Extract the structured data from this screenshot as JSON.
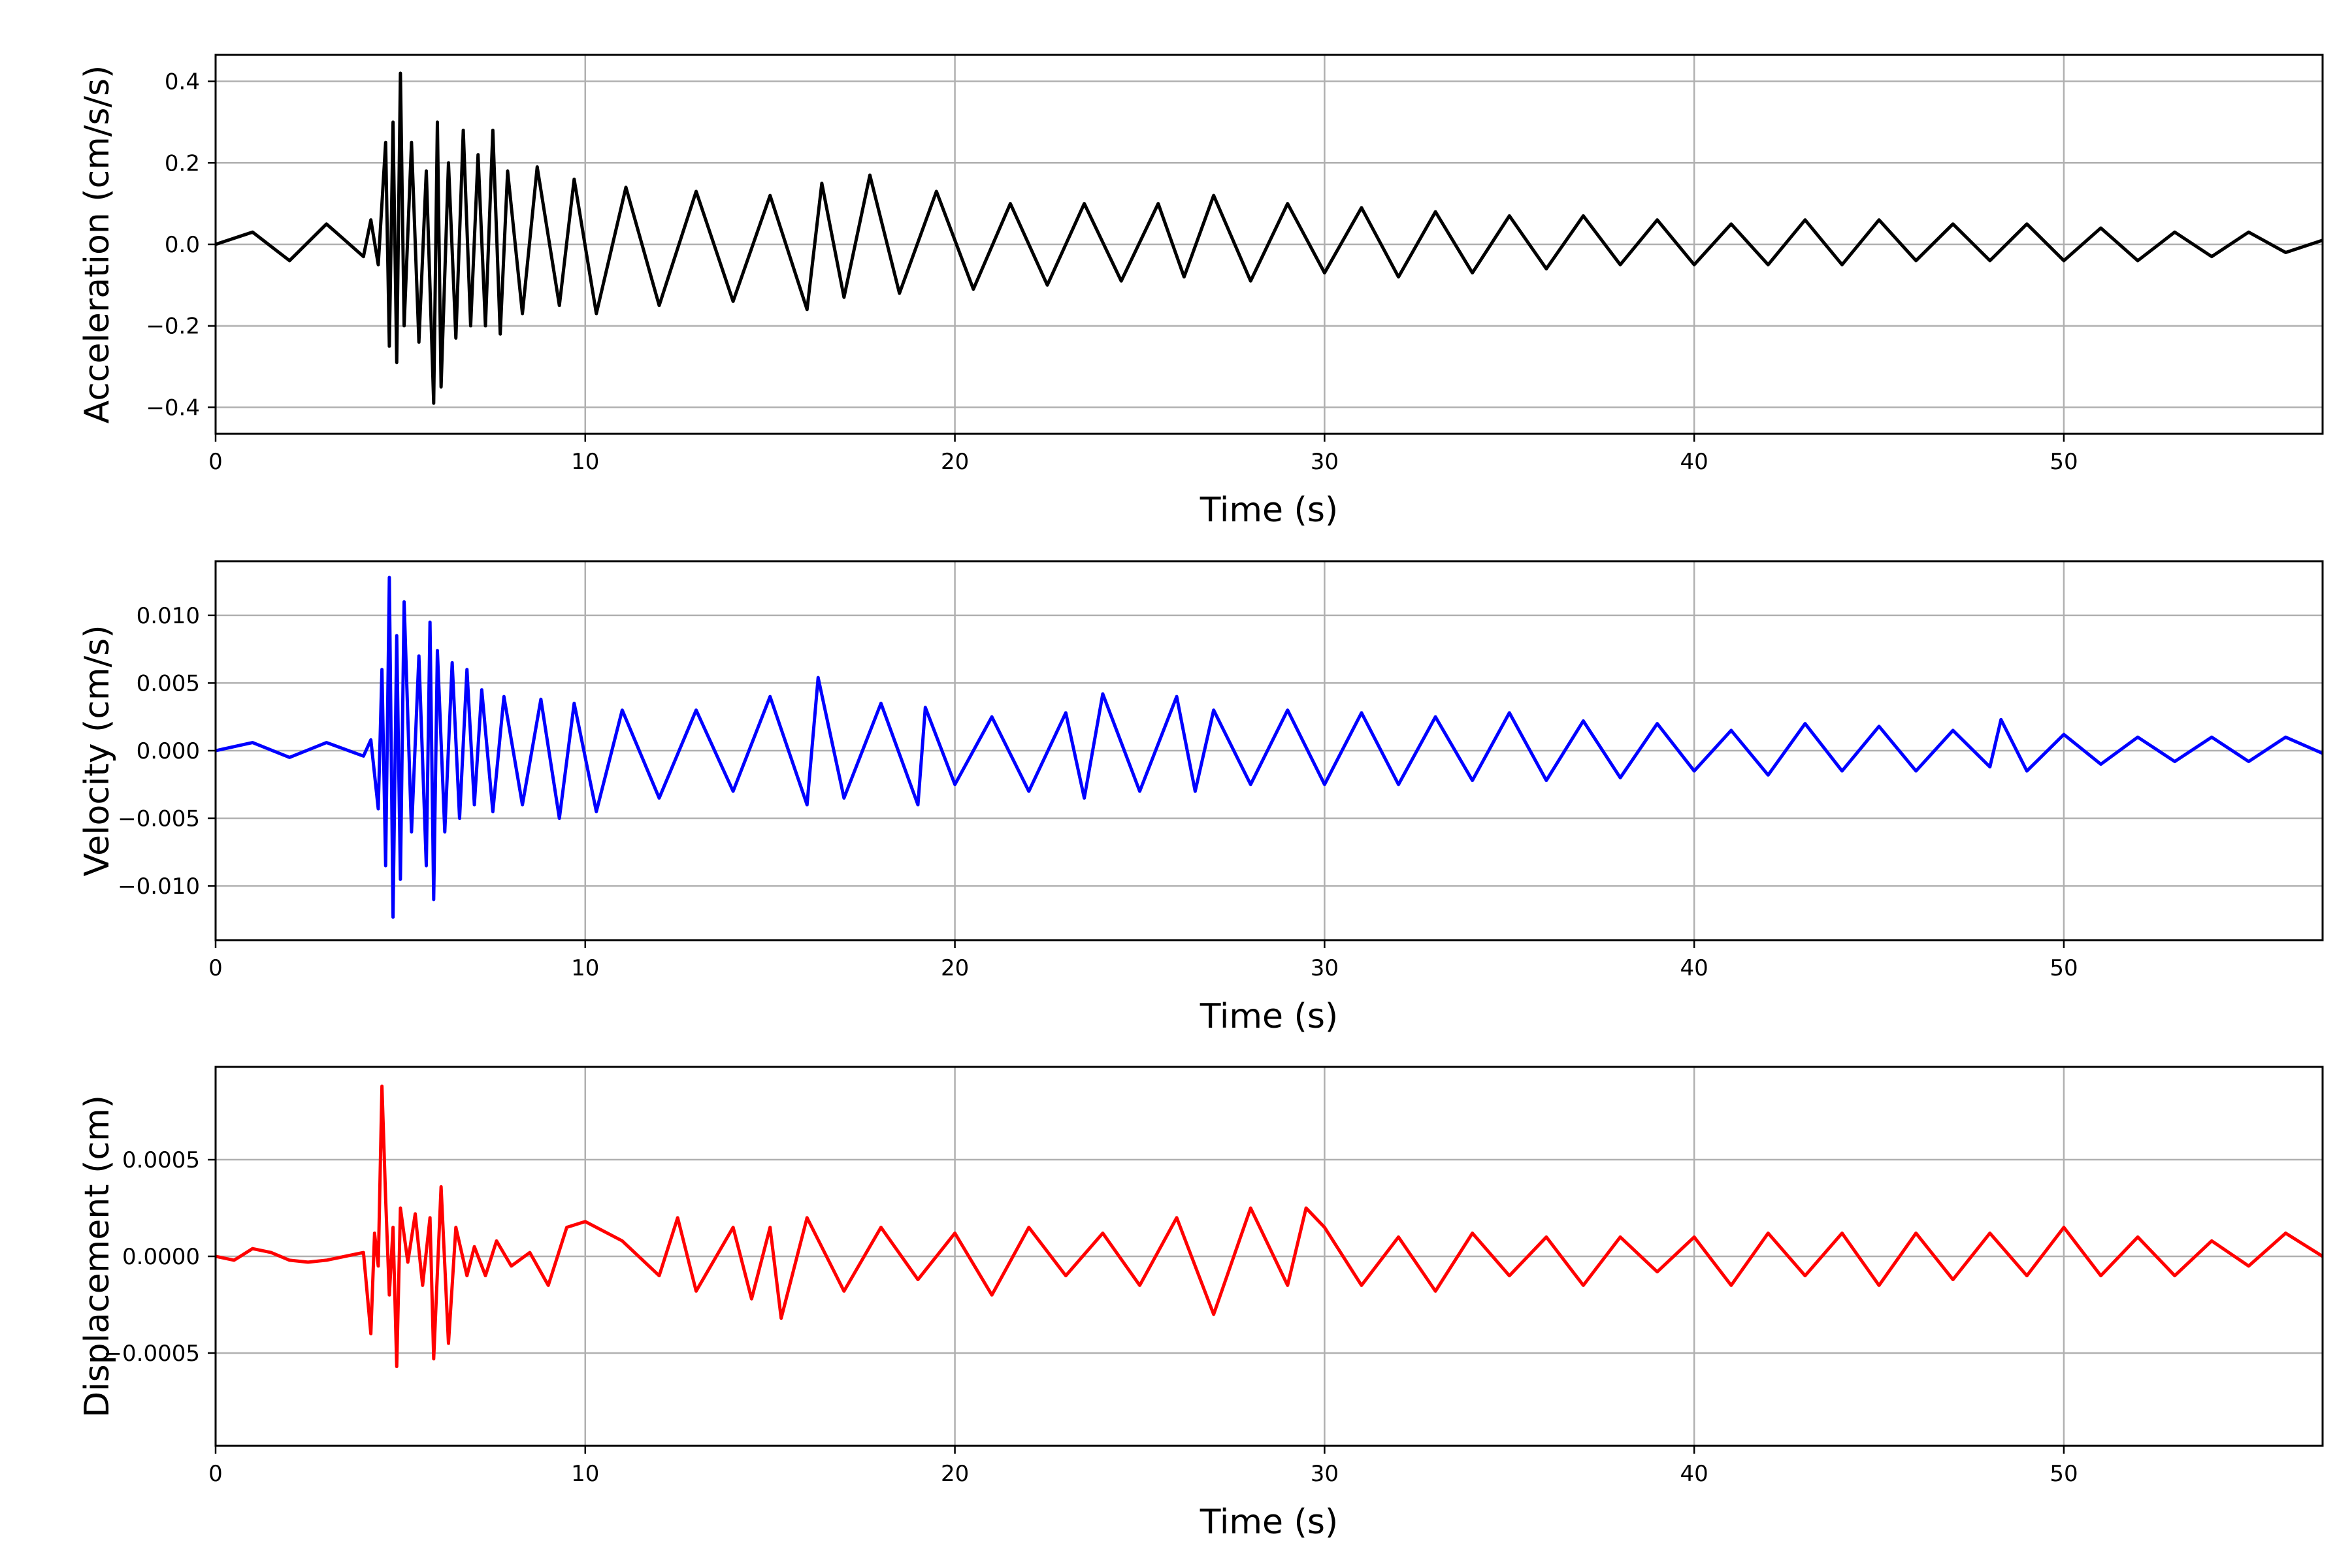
{
  "figure": {
    "title": "",
    "background_color": "#ffffff",
    "grid_color": "#b0b0b0"
  },
  "chart_data": [
    {
      "type": "line",
      "xlabel": "Time (s)",
      "ylabel": "Acceleration (cm/s/s)",
      "xlim": [
        0,
        57
      ],
      "ylim": [
        -0.465,
        0.465
      ],
      "xticks": [
        0,
        10,
        20,
        30,
        40,
        50
      ],
      "xtick_labels": [
        "0",
        "10",
        "20",
        "30",
        "40",
        "50"
      ],
      "yticks": [
        -0.4,
        -0.2,
        0.0,
        0.2,
        0.4
      ],
      "ytick_labels": [
        "−0.4",
        "−0.2",
        "0.0",
        "0.2",
        "0.4"
      ],
      "grid": true,
      "series": [
        {
          "color": "#000000",
          "x": [
            0,
            1,
            2,
            3,
            4,
            4.2,
            4.4,
            4.6,
            4.7,
            4.8,
            4.9,
            5.0,
            5.1,
            5.3,
            5.5,
            5.7,
            5.9,
            6.0,
            6.1,
            6.3,
            6.5,
            6.7,
            6.9,
            7.1,
            7.3,
            7.5,
            7.7,
            7.9,
            8.3,
            8.7,
            9.3,
            9.7,
            10.3,
            11.1,
            12.0,
            13.0,
            14.0,
            15.0,
            16.0,
            16.4,
            17.0,
            17.7,
            18.5,
            19.5,
            20.5,
            21.5,
            22.5,
            23.5,
            24.5,
            25.5,
            26.2,
            27.0,
            28.0,
            29.0,
            30.0,
            31.0,
            32.0,
            33.0,
            34.0,
            35.0,
            36.0,
            37.0,
            38.0,
            39.0,
            40.0,
            41.0,
            42.0,
            43.0,
            44.0,
            45.0,
            46.0,
            47.0,
            48.0,
            49.0,
            50.0,
            51.0,
            52.0,
            53.0,
            54.0,
            55.0,
            56.0,
            57.0
          ],
          "y": [
            0.0,
            0.03,
            -0.04,
            0.05,
            -0.03,
            0.06,
            -0.05,
            0.25,
            -0.25,
            0.3,
            -0.29,
            0.42,
            -0.2,
            0.25,
            -0.24,
            0.18,
            -0.39,
            0.3,
            -0.35,
            0.2,
            -0.23,
            0.28,
            -0.2,
            0.22,
            -0.2,
            0.28,
            -0.22,
            0.18,
            -0.17,
            0.19,
            -0.15,
            0.16,
            -0.17,
            0.14,
            -0.15,
            0.13,
            -0.14,
            0.12,
            -0.16,
            0.15,
            -0.13,
            0.17,
            -0.12,
            0.13,
            -0.11,
            0.1,
            -0.1,
            0.1,
            -0.09,
            0.1,
            -0.08,
            0.12,
            -0.09,
            0.1,
            -0.07,
            0.09,
            -0.08,
            0.08,
            -0.07,
            0.07,
            -0.06,
            0.07,
            -0.05,
            0.06,
            -0.05,
            0.05,
            -0.05,
            0.06,
            -0.05,
            0.06,
            -0.04,
            0.05,
            -0.04,
            0.05,
            -0.04,
            0.04,
            -0.04,
            0.03,
            -0.03,
            0.03,
            -0.02,
            0.01
          ]
        }
      ]
    },
    {
      "type": "line",
      "xlabel": "Time (s)",
      "ylabel": "Velocity (cm/s)",
      "xlim": [
        0,
        57
      ],
      "ylim": [
        -0.014,
        0.014
      ],
      "xticks": [
        0,
        10,
        20,
        30,
        40,
        50
      ],
      "xtick_labels": [
        "0",
        "10",
        "20",
        "30",
        "40",
        "50"
      ],
      "yticks": [
        -0.01,
        -0.005,
        0.0,
        0.005,
        0.01
      ],
      "ytick_labels": [
        "−0.010",
        "−0.005",
        "0.000",
        "0.005",
        "0.010"
      ],
      "grid": true,
      "series": [
        {
          "color": "#0000ff",
          "x": [
            0,
            1,
            2,
            3,
            4,
            4.2,
            4.4,
            4.5,
            4.6,
            4.7,
            4.8,
            4.9,
            5.0,
            5.1,
            5.3,
            5.5,
            5.7,
            5.8,
            5.9,
            6.0,
            6.2,
            6.4,
            6.6,
            6.8,
            7.0,
            7.2,
            7.5,
            7.8,
            8.3,
            8.8,
            9.3,
            9.7,
            10.3,
            11.0,
            12.0,
            13.0,
            14.0,
            15.0,
            16.0,
            16.3,
            17.0,
            18.0,
            19.0,
            19.2,
            20.0,
            21.0,
            22.0,
            23.0,
            23.5,
            24.0,
            25.0,
            26.0,
            26.5,
            27.0,
            28.0,
            29.0,
            30.0,
            31.0,
            32.0,
            33.0,
            34.0,
            35.0,
            36.0,
            37.0,
            38.0,
            39.0,
            40.0,
            41.0,
            42.0,
            43.0,
            44.0,
            45.0,
            46.0,
            47.0,
            48.0,
            48.3,
            49.0,
            50.0,
            51.0,
            52.0,
            53.0,
            54.0,
            55.0,
            56.0,
            57.0
          ],
          "y": [
            0.0,
            0.0006,
            -0.0005,
            0.0006,
            -0.0004,
            0.0008,
            -0.0043,
            0.006,
            -0.0085,
            0.0128,
            -0.0123,
            0.0085,
            -0.0095,
            0.011,
            -0.006,
            0.007,
            -0.0085,
            0.0095,
            -0.011,
            0.0074,
            -0.006,
            0.0065,
            -0.005,
            0.006,
            -0.004,
            0.0045,
            -0.0045,
            0.004,
            -0.004,
            0.0038,
            -0.005,
            0.0035,
            -0.0045,
            0.003,
            -0.0035,
            0.003,
            -0.003,
            0.004,
            -0.004,
            0.0054,
            -0.0035,
            0.0035,
            -0.004,
            0.0032,
            -0.0025,
            0.0025,
            -0.003,
            0.0028,
            -0.0035,
            0.0042,
            -0.003,
            0.004,
            -0.003,
            0.003,
            -0.0025,
            0.003,
            -0.0025,
            0.0028,
            -0.0025,
            0.0025,
            -0.0022,
            0.0028,
            -0.0022,
            0.0022,
            -0.002,
            0.002,
            -0.0015,
            0.0015,
            -0.0018,
            0.002,
            -0.0015,
            0.0018,
            -0.0015,
            0.0015,
            -0.0012,
            0.0023,
            -0.0015,
            0.0012,
            -0.001,
            0.001,
            -0.0008,
            0.001,
            -0.0008,
            0.001,
            -0.0002
          ]
        }
      ]
    },
    {
      "type": "line",
      "xlabel": "Time (s)",
      "ylabel": "Displacement (cm)",
      "xlim": [
        0,
        57
      ],
      "ylim": [
        -0.00098,
        0.00098
      ],
      "xticks": [
        0,
        10,
        20,
        30,
        40,
        50
      ],
      "xtick_labels": [
        "0",
        "10",
        "20",
        "30",
        "40",
        "50"
      ],
      "yticks": [
        -0.0005,
        0.0,
        0.0005
      ],
      "ytick_labels": [
        "−0.0005",
        "0.0000",
        "0.0005"
      ],
      "grid": true,
      "series": [
        {
          "color": "#ff0000",
          "x": [
            0,
            0.5,
            1.0,
            1.5,
            2.0,
            2.5,
            3.0,
            3.5,
            4.0,
            4.2,
            4.3,
            4.4,
            4.5,
            4.6,
            4.7,
            4.8,
            4.9,
            5.0,
            5.2,
            5.4,
            5.6,
            5.8,
            5.9,
            6.1,
            6.3,
            6.5,
            6.8,
            7.0,
            7.3,
            7.6,
            8.0,
            8.5,
            9.0,
            9.5,
            10.0,
            11.0,
            12.0,
            12.5,
            13.0,
            14.0,
            14.5,
            15.0,
            15.3,
            16.0,
            17.0,
            18.0,
            19.0,
            20.0,
            21.0,
            22.0,
            23.0,
            24.0,
            25.0,
            26.0,
            27.0,
            28.0,
            29.0,
            29.5,
            30.0,
            31.0,
            32.0,
            33.0,
            34.0,
            35.0,
            36.0,
            37.0,
            38.0,
            39.0,
            40.0,
            41.0,
            42.0,
            43.0,
            44.0,
            45.0,
            46.0,
            47.0,
            48.0,
            49.0,
            50.0,
            51.0,
            52.0,
            53.0,
            54.0,
            55.0,
            56.0,
            57.0
          ],
          "y": [
            0.0,
            -2e-05,
            4e-05,
            2e-05,
            -2e-05,
            -3e-05,
            -2e-05,
            0.0,
            2e-05,
            -0.0004,
            0.00012,
            -5e-05,
            0.00088,
            0.0003,
            -0.0002,
            0.00015,
            -0.00057,
            0.00025,
            -3e-05,
            0.00022,
            -0.00015,
            0.0002,
            -0.00053,
            0.00036,
            -0.00045,
            0.00015,
            -0.0001,
            5e-05,
            -0.0001,
            8e-05,
            -5e-05,
            2e-05,
            -0.00015,
            0.00015,
            0.00018,
            8e-05,
            -0.0001,
            0.0002,
            -0.00018,
            0.00015,
            -0.00022,
            0.00015,
            -0.00032,
            0.0002,
            -0.00018,
            0.00015,
            -0.00012,
            0.00012,
            -0.0002,
            0.00015,
            -0.0001,
            0.00012,
            -0.00015,
            0.0002,
            -0.0003,
            0.00025,
            -0.00015,
            0.00025,
            0.00015,
            -0.00015,
            0.0001,
            -0.00018,
            0.00012,
            -0.0001,
            0.0001,
            -0.00015,
            0.0001,
            -8e-05,
            0.0001,
            -0.00015,
            0.00012,
            -0.0001,
            0.00012,
            -0.00015,
            0.00012,
            -0.00012,
            0.00012,
            -0.0001,
            0.00015,
            -0.0001,
            0.0001,
            -0.0001,
            8e-05,
            -5e-05,
            0.00012,
            0.0
          ]
        }
      ]
    }
  ]
}
